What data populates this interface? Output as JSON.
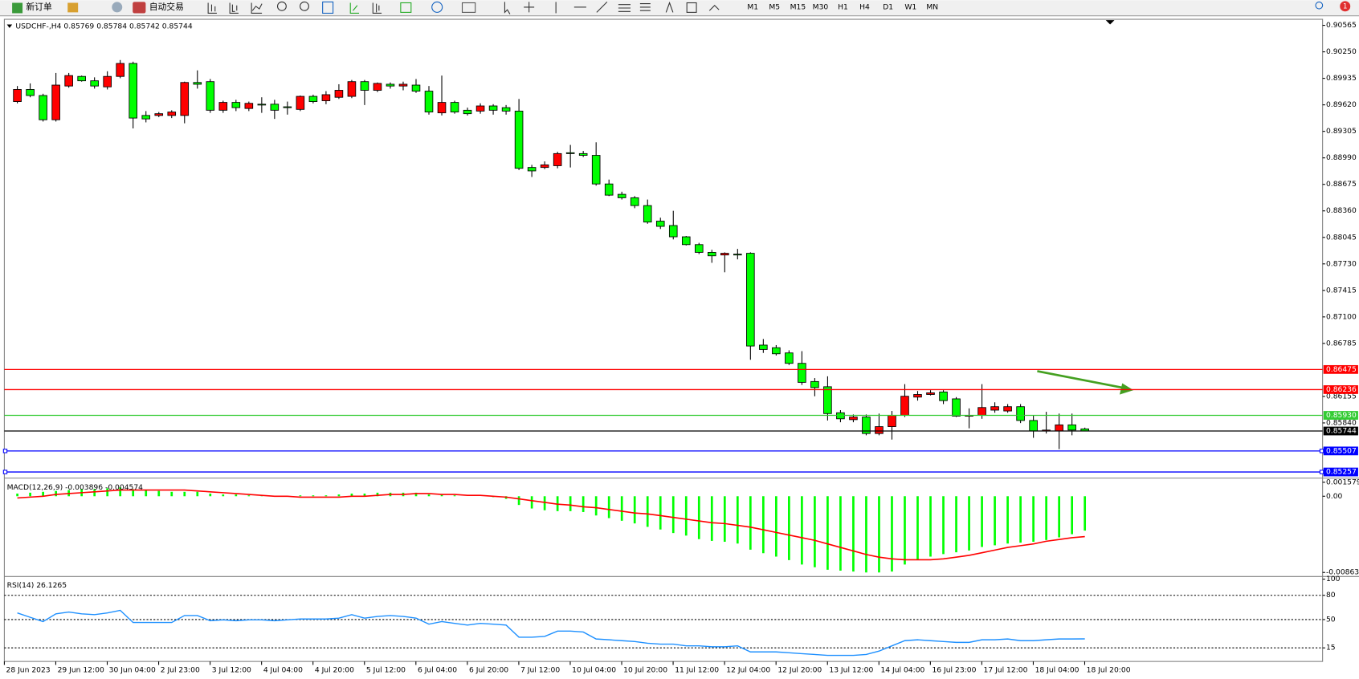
{
  "toolbar": {
    "new_order": "新订单",
    "auto_trading": "自动交易",
    "timeframes": [
      "M1",
      "M5",
      "M15",
      "M30",
      "H1",
      "H4",
      "D1",
      "W1",
      "MN"
    ],
    "notifications": "1"
  },
  "chart_data": [
    {
      "type": "candlestick",
      "title": "USDCHF-,H4",
      "open": [
        0.89659,
        0.89803,
        0.89731,
        0.89443,
        0.89844,
        0.89958,
        0.89906,
        0.89834,
        0.89958,
        0.90112,
        0.89494,
        0.89494,
        0.89494,
        0.89494,
        0.89886,
        0.89896,
        0.89556,
        0.89649,
        0.89577,
        0.89628,
        0.89628,
        0.89597,
        0.89566,
        0.89721,
        0.89669,
        0.8971,
        0.89721,
        0.89896,
        0.89793,
        0.89865,
        0.89844,
        0.89855,
        0.89783,
        0.89525,
        0.89649,
        0.89556,
        0.89546,
        0.89607,
        0.89587,
        0.89546,
        0.88876,
        0.88876,
        0.88897,
        0.89051,
        0.89041,
        0.8902,
        0.8868,
        0.88557,
        0.88516,
        0.88423,
        0.88238,
        0.88186,
        0.88052,
        0.87959,
        0.87867,
        0.87836,
        0.87846,
        0.87856,
        0.86765,
        0.86734,
        0.86672,
        0.86548,
        0.86332,
        0.8627,
        0.85961,
        0.85879,
        0.8591,
        0.85714,
        0.85796,
        0.8593,
        0.86147,
        0.86178,
        0.86208,
        0.86126,
        0.8592,
        0.8593,
        0.85992,
        0.85982,
        0.86033,
        0.85869,
        0.85745,
        0.85745,
        0.85817,
        0.85769
      ],
      "high": [
        0.89844,
        0.89875,
        0.89752,
        0.89999,
        0.89999,
        0.89968,
        0.89947,
        0.90019,
        0.90153,
        0.90133,
        0.89546,
        0.89535,
        0.89556,
        0.89896,
        0.9003,
        0.89927,
        0.89669,
        0.8968,
        0.89659,
        0.8971,
        0.8968,
        0.89659,
        0.89731,
        0.89741,
        0.89783,
        0.89865,
        0.89916,
        0.89916,
        0.89886,
        0.89886,
        0.89896,
        0.89927,
        0.89844,
        0.89968,
        0.89669,
        0.89587,
        0.89638,
        0.89628,
        0.89618,
        0.8969,
        0.88907,
        0.88948,
        0.89062,
        0.89144,
        0.89072,
        0.89175,
        0.88732,
        0.88588,
        0.88536,
        0.88495,
        0.88279,
        0.88361,
        0.88062,
        0.8798,
        0.87898,
        0.87867,
        0.87908,
        0.87867,
        0.86837,
        0.86765,
        0.86703,
        0.86693,
        0.86373,
        0.86394,
        0.85992,
        0.85941,
        0.85941,
        0.85951,
        0.85982,
        0.86301,
        0.86219,
        0.86229,
        0.86229,
        0.86147,
        0.86013,
        0.86301,
        0.86085,
        0.86064,
        0.86064,
        0.8593,
        0.85972,
        0.85951,
        0.85951,
        0.85784
      ],
      "low": [
        0.89638,
        0.8971,
        0.89422,
        0.89422,
        0.89824,
        0.89896,
        0.89813,
        0.89803,
        0.89937,
        0.8934,
        0.89412,
        0.89474,
        0.89463,
        0.89401,
        0.89813,
        0.89525,
        0.89525,
        0.89546,
        0.89546,
        0.89525,
        0.89453,
        0.89504,
        0.89546,
        0.89638,
        0.89628,
        0.8969,
        0.897,
        0.89618,
        0.89772,
        0.89813,
        0.89793,
        0.89762,
        0.89504,
        0.89494,
        0.89515,
        0.89494,
        0.89515,
        0.89504,
        0.89504,
        0.88845,
        0.88763,
        0.88856,
        0.88866,
        0.88876,
        0.89,
        0.8866,
        0.88536,
        0.88495,
        0.88392,
        0.88207,
        0.88145,
        0.88021,
        0.87949,
        0.87846,
        0.87743,
        0.8763,
        0.87784,
        0.8659,
        0.86672,
        0.86641,
        0.86528,
        0.86291,
        0.86157,
        0.85869,
        0.85848,
        0.85848,
        0.85693,
        0.85693,
        0.85642,
        0.8591,
        0.86105,
        0.86167,
        0.86064,
        0.8591,
        0.85776,
        0.85889,
        0.85961,
        0.85961,
        0.85838,
        0.85663,
        0.85714,
        0.85529,
        0.85693,
        0.85742
      ],
      "close": [
        0.89803,
        0.89731,
        0.89443,
        0.89855,
        0.89968,
        0.89906,
        0.89844,
        0.89958,
        0.90112,
        0.89463,
        0.89453,
        0.89515,
        0.89535,
        0.89886,
        0.89865,
        0.89556,
        0.89649,
        0.89587,
        0.89638,
        0.89618,
        0.89556,
        0.89587,
        0.89721,
        0.89659,
        0.89741,
        0.89793,
        0.89896,
        0.89793,
        0.89875,
        0.89844,
        0.89865,
        0.89783,
        0.89535,
        0.89649,
        0.89535,
        0.89515,
        0.89607,
        0.89556,
        0.89546,
        0.88866,
        0.88835,
        0.88907,
        0.89041,
        0.89041,
        0.8902,
        0.8868,
        0.88547,
        0.88516,
        0.88423,
        0.88227,
        0.88176,
        0.88052,
        0.87959,
        0.87867,
        0.87826,
        0.87856,
        0.87836,
        0.86754,
        0.86713,
        0.86662,
        0.86548,
        0.86322,
        0.8626,
        0.85951,
        0.85889,
        0.8591,
        0.85714,
        0.85796,
        0.8593,
        0.86157,
        0.86178,
        0.86198,
        0.86105,
        0.8592,
        0.8593,
        0.86023,
        0.86033,
        0.86033,
        0.85869,
        0.85745,
        0.85755,
        0.85817,
        0.85755,
        0.85744
      ],
      "up_color": "#ff0000",
      "down_color": "#00ff00",
      "ylim": [
        0.85199,
        0.90637
      ],
      "yticks": [
        0.90565,
        {
          "value": 0.9025,
          "label": "0.90250"
        },
        0.89935,
        {
          "value": 0.8962,
          "label": "0.89620"
        },
        0.89305,
        {
          "value": 0.8899,
          "label": "0.88990"
        },
        0.88675,
        {
          "value": 0.8836,
          "label": "0.88360"
        },
        0.88045,
        {
          "value": 0.8773,
          "label": "0.87730"
        },
        0.87415,
        {
          "value": 0.871,
          "label": "0.87100"
        },
        0.86785,
        0.86155,
        {
          "value": 0.8584,
          "label": "0.85840"
        }
      ],
      "levels": [
        {
          "value": 0.86475,
          "color": "#ff0000"
        },
        {
          "value": 0.86236,
          "color": "#ff0000"
        },
        {
          "value": 0.8593,
          "label": "0.85930",
          "color": "#33cc33"
        },
        {
          "value": 0.85744,
          "color": "#000000"
        },
        {
          "value": 0.85507,
          "color": "#0000ff"
        },
        {
          "value": 0.85257,
          "color": "#0000ff"
        }
      ],
      "x_labels": [
        "28 Jun 2023",
        "29 Jun 12:00",
        "30 Jun 04:00",
        "2 Jul 23:00",
        "3 Jul 12:00",
        "4 Jul 04:00",
        "4 Jul 20:00",
        "5 Jul 12:00",
        "6 Jul 04:00",
        "6 Jul 20:00",
        "7 Jul 12:00",
        "10 Jul 04:00",
        "10 Jul 20:00",
        "11 Jul 12:00",
        "12 Jul 04:00",
        "12 Jul 20:00",
        "13 Jul 12:00",
        "14 Jul 04:00",
        "16 Jul 23:00",
        "17 Jul 12:00",
        "18 Jul 04:00",
        "18 Jul 20:00"
      ]
    },
    {
      "type": "macd",
      "title": "MACD(12,26,9)",
      "histogram": {
        "color": "#00ff00",
        "values": [
          0.0003,
          0.0004,
          0.0005,
          0.0006,
          0.0007,
          0.0008,
          0.0008,
          0.0009,
          0.001,
          0.0008,
          0.0007,
          0.0006,
          0.0005,
          0.0005,
          0.0005,
          0.0003,
          0.0002,
          0.0002,
          0.0001,
          0.0001,
          0,
          0,
          0.0001,
          0.0001,
          0.0001,
          0.0002,
          0.0003,
          0.0003,
          0.0004,
          0.0004,
          0.0004,
          0.0004,
          0.0002,
          0.0002,
          0.0001,
          0,
          0,
          -0.0001,
          -0.0003,
          -0.00099,
          -0.00139,
          -0.00159,
          -0.00169,
          -0.00169,
          -0.00179,
          -0.00218,
          -0.00248,
          -0.00278,
          -0.00308,
          -0.00347,
          -0.00377,
          -0.00417,
          -0.00446,
          -0.00486,
          -0.00506,
          -0.00516,
          -0.00536,
          -0.00605,
          -0.00645,
          -0.00684,
          -0.00724,
          -0.00774,
          -0.00804,
          -0.00833,
          -0.00843,
          -0.00853,
          -0.00863,
          -0.00863,
          -0.00853,
          -0.00774,
          -0.00724,
          -0.00684,
          -0.00655,
          -0.00635,
          -0.00615,
          -0.00575,
          -0.00556,
          -0.00536,
          -0.00526,
          -0.00516,
          -0.00496,
          -0.00466,
          -0.0043,
          -0.003896
        ]
      },
      "signal": {
        "color": "#ff0000",
        "values": [
          -0.0002,
          -0.0001,
          0,
          0.0002,
          0.0003,
          0.0004,
          0.0005,
          0.0006,
          0.0007,
          0.0007,
          0.0007,
          0.0007,
          0.0007,
          0.0007,
          0.0006,
          0.0005,
          0.0004,
          0.0003,
          0.0002,
          0.0001,
          0,
          0,
          -0.0001,
          -0.0001,
          -0.0001,
          -0.0001,
          0,
          0,
          0.0001,
          0.0002,
          0.0002,
          0.0003,
          0.0003,
          0.0002,
          0.0002,
          0.0001,
          0.0001,
          0,
          -0.0001,
          -0.0003,
          -0.0005,
          -0.0007,
          -0.0009,
          -0.001,
          -0.0012,
          -0.0013,
          -0.0015,
          -0.0017,
          -0.0019,
          -0.002,
          -0.0022,
          -0.0024,
          -0.0026,
          -0.0028,
          -0.003,
          -0.0031,
          -0.0033,
          -0.0035,
          -0.0038,
          -0.0041,
          -0.0044,
          -0.0047,
          -0.005,
          -0.0054,
          -0.0058,
          -0.0062,
          -0.0066,
          -0.0069,
          -0.0071,
          -0.0072,
          -0.0072,
          -0.0072,
          -0.0071,
          -0.0069,
          -0.0067,
          -0.0064,
          -0.0061,
          -0.0058,
          -0.0056,
          -0.0054,
          -0.0051,
          -0.0049,
          -0.0047,
          -0.004574
        ]
      },
      "ylim": [
        -0.0089,
        0.0019
      ],
      "yticks": [
        0.001579,
        {
          "value": 0,
          "label": "0.00"
        },
        -0.008633
      ]
    },
    {
      "type": "line",
      "title": "RSI(14)",
      "color": "#1e90ff",
      "values": [
        58.2,
        52.8,
        47.5,
        57.1,
        59.3,
        57.1,
        56.1,
        58.2,
        61.4,
        46.4,
        46.4,
        46.4,
        46.4,
        55,
        55,
        48.6,
        49.6,
        48.6,
        49.6,
        49.6,
        48.6,
        49.6,
        50.7,
        50.7,
        50.7,
        51.8,
        56.1,
        51.8,
        53.9,
        55,
        53.9,
        51.8,
        44.3,
        47.5,
        45.3,
        43.2,
        45.3,
        44.3,
        43.2,
        28.2,
        28.2,
        29.2,
        35.7,
        35.7,
        34.6,
        26,
        25,
        23.9,
        22.8,
        20.7,
        19.6,
        19.6,
        17.5,
        17.5,
        16.4,
        16.4,
        17.5,
        10,
        10,
        10,
        8.9,
        7.8,
        6.8,
        5.7,
        5.7,
        5.7,
        6.8,
        11,
        17.5,
        23.9,
        25,
        23.9,
        22.8,
        21.8,
        21.8,
        25,
        25,
        26,
        23.9,
        23.9,
        25,
        26,
        26,
        26.1265
      ],
      "ylim": [
        -1.8,
        101.1
      ],
      "yticks": [
        100,
        80,
        50,
        15
      ],
      "levels": [
        80,
        50,
        15
      ]
    }
  ]
}
